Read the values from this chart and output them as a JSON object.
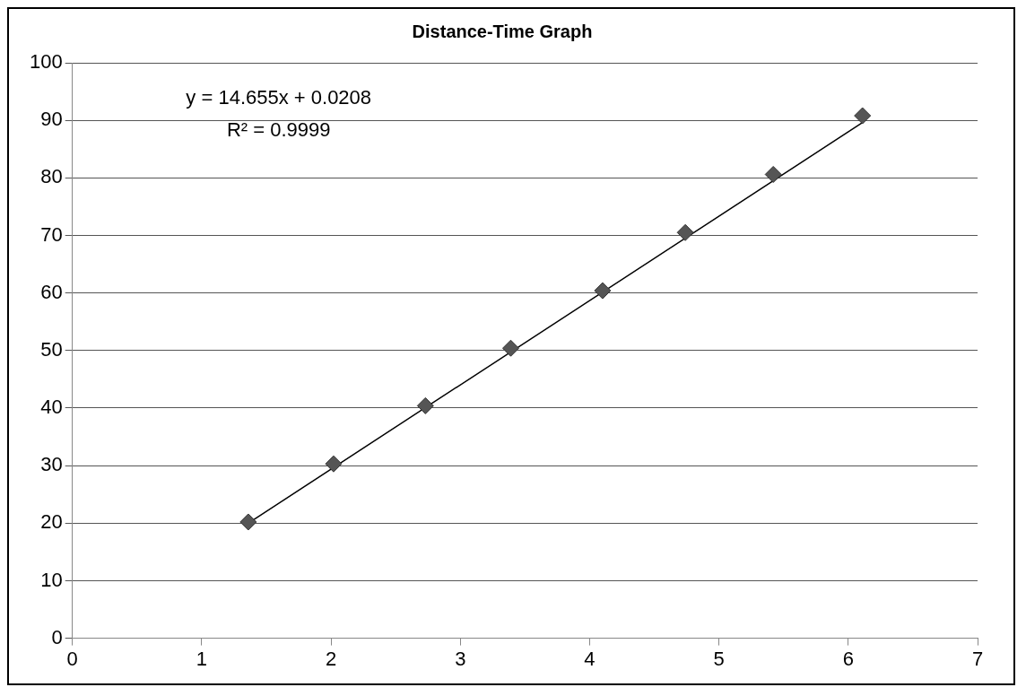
{
  "chart_data": {
    "type": "scatter",
    "title": "Distance-Time Graph",
    "series": [
      {
        "color": "#555555",
        "marker": "diamond",
        "x": [
          1.36,
          2.02,
          2.73,
          3.39,
          4.1,
          4.74,
          5.42,
          6.11
        ],
        "values": [
          20.2,
          30.3,
          40.4,
          50.4,
          60.4,
          70.5,
          80.6,
          90.8
        ]
      },
      {
        "type": "line",
        "color": "#000000",
        "marker": "none",
        "x": [
          1.36,
          6.11
        ],
        "values": [
          20,
          89.6
        ]
      }
    ],
    "annotations": [
      "y = 14.655x + 0.0208",
      "R² = 0.9999"
    ],
    "xlim": [
      0,
      7
    ],
    "xticks": [
      0,
      1,
      2,
      3,
      4,
      5,
      6,
      7
    ],
    "ylim": [
      0,
      100
    ],
    "yticks": [
      0,
      10,
      20,
      30,
      40,
      50,
      60,
      70,
      80,
      90,
      100
    ],
    "grid": "y",
    "legend": false
  }
}
